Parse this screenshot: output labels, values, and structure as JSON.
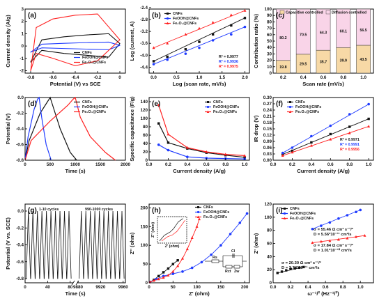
{
  "colors": {
    "black": "#111111",
    "blue": "#1f3bff",
    "red": "#ff2020",
    "cap": "#f7d9a6",
    "dif": "#f9d4e8",
    "axis": "#000000"
  },
  "legend_labels": {
    "cnfs": "CNFs",
    "feooh": "FeOOH@CNFs",
    "fe2o3": "Fe₂O₃@CNFs"
  },
  "chart_data": [
    {
      "panel": "(a)",
      "type": "line",
      "xlabel": "Potential (V) vs SCE",
      "ylabel": "Current density (A/g)",
      "xlim": [
        -0.85,
        0.05
      ],
      "ylim": [
        -2.2,
        3.0
      ],
      "xticks": [
        "-0.8",
        "-0.6",
        "-0.4",
        "-0.2",
        "0"
      ],
      "yticks": [
        "-2",
        "-1",
        "0",
        "1",
        "2",
        "3"
      ],
      "series": [
        {
          "name": "CNFs",
          "color": "#111111",
          "x": [
            -0.8,
            -0.7,
            -0.5,
            -0.3,
            -0.1,
            0,
            -0.1,
            -0.3,
            -0.5,
            -0.7,
            -0.8
          ],
          "y": [
            -1.3,
            0.5,
            0.75,
            0.9,
            1.0,
            0.2,
            -0.9,
            -0.75,
            -0.6,
            -0.35,
            -1.3
          ]
        },
        {
          "name": "FeOOH@CNFs",
          "color": "#1f3bff",
          "x": [
            -0.8,
            -0.7,
            -0.5,
            -0.3,
            -0.1,
            0,
            -0.1,
            -0.3,
            -0.5,
            -0.7,
            -0.8
          ],
          "y": [
            -0.5,
            0.15,
            0.22,
            0.28,
            0.32,
            0.05,
            -0.3,
            -0.25,
            -0.2,
            -0.15,
            -0.5
          ]
        },
        {
          "name": "Fe₂O₃@CNFs",
          "color": "#ff2020",
          "x": [
            -0.8,
            -0.75,
            -0.6,
            -0.4,
            -0.2,
            0,
            -0.2,
            -0.4,
            -0.6,
            -0.75,
            -0.8
          ],
          "y": [
            -2.0,
            1.5,
            2.2,
            2.5,
            2.6,
            0.5,
            -1.2,
            -1.6,
            -1.0,
            -0.6,
            -2.0
          ]
        }
      ]
    },
    {
      "panel": "(b)",
      "type": "scatter",
      "xlabel": "Log (scan rate, mV/s)",
      "ylabel": "Log (current, A)",
      "xlim": [
        -0.1,
        2.1
      ],
      "ylim": [
        -4.6,
        -2.45
      ],
      "xticks": [
        "0.0",
        "0.5",
        "1.0",
        "1.5",
        "2.0"
      ],
      "yticks": [
        "-4.4",
        "-4.0",
        "-3.6",
        "-3.2",
        "-2.8",
        "-2.4"
      ],
      "r2_labels": [
        "R² = 0.9977",
        "R² = 0.9936",
        "R² = 0.9975"
      ],
      "series": [
        {
          "name": "CNFs",
          "color": "#111111",
          "x": [
            0,
            0.3,
            0.7,
            1.0,
            1.3,
            1.7,
            2.0
          ],
          "y": [
            -4.2,
            -4.05,
            -3.8,
            -3.55,
            -3.3,
            -3.0,
            -2.75
          ]
        },
        {
          "name": "FeOOH@CNFs",
          "color": "#1f3bff",
          "x": [
            0,
            0.3,
            0.7,
            1.0,
            1.3,
            1.7,
            2.0
          ],
          "y": [
            -4.3,
            -4.15,
            -3.95,
            -3.75,
            -3.5,
            -3.3,
            -3.05
          ]
        },
        {
          "name": "Fe₂O₃@CNFs",
          "color": "#ff2020",
          "x": [
            0,
            0.3,
            0.7,
            1.0,
            1.3,
            1.7,
            2.0
          ],
          "y": [
            -3.75,
            -3.6,
            -3.3,
            -3.1,
            -2.9,
            -2.65,
            -2.5
          ]
        }
      ]
    },
    {
      "panel": "(c)",
      "type": "bar",
      "xlabel": "Scan rate (mV/s)",
      "ylabel": "Contribution ratio (%)",
      "categories": [
        "0.2",
        "0.4",
        "0.6",
        "0.8",
        "1.0"
      ],
      "ylim": [
        0,
        100
      ],
      "yticks": [
        "0",
        "10",
        "20",
        "30",
        "40",
        "50",
        "60",
        "70",
        "80",
        "90",
        "100"
      ],
      "series": [
        {
          "name": "Capacitive controlled",
          "values": [
            19.8,
            29.5,
            35.7,
            39.9,
            43.5
          ]
        },
        {
          "name": "Diffusion controlled",
          "values": [
            80.2,
            70.5,
            64.3,
            60.1,
            56.5
          ]
        }
      ]
    },
    {
      "panel": "(d)",
      "type": "line",
      "xlabel": "Time (s)",
      "ylabel": "Potential (V)",
      "xlim": [
        0,
        2000
      ],
      "ylim": [
        -0.8,
        0
      ],
      "xticks": [
        "0",
        "500",
        "1000",
        "1500",
        "2000"
      ],
      "yticks": [
        "-0.8",
        "-0.6",
        "-0.4",
        "-0.2",
        "0.0"
      ],
      "series": [
        {
          "name": "CNFs",
          "color": "#111111",
          "x": [
            0,
            80,
            300,
            450,
            500,
            550,
            700,
            900,
            1030
          ],
          "y": [
            -0.8,
            -0.55,
            -0.2,
            -0.05,
            0,
            -0.1,
            -0.4,
            -0.7,
            -0.8
          ]
        },
        {
          "name": "FeOOH@CNFs",
          "color": "#1f3bff",
          "x": [
            0,
            60,
            180,
            250,
            280,
            330,
            420,
            520
          ],
          "y": [
            -0.8,
            -0.5,
            -0.15,
            -0.02,
            0,
            -0.25,
            -0.6,
            -0.8
          ]
        },
        {
          "name": "Fe₂O₃@CNFs",
          "color": "#ff2020",
          "x": [
            0,
            120,
            500,
            850,
            960,
            1000,
            1100,
            1300,
            1600,
            1800
          ],
          "y": [
            -0.8,
            -0.55,
            -0.3,
            -0.1,
            -0.02,
            0,
            -0.25,
            -0.5,
            -0.7,
            -0.8
          ]
        }
      ]
    },
    {
      "panel": "(e)",
      "type": "line",
      "xlabel": "Current density (A/g)",
      "ylabel": "Specific capacitance (F/g)",
      "xlim": [
        0,
        1.05
      ],
      "ylim": [
        0,
        150
      ],
      "xticks": [
        "0.0",
        "0.2",
        "0.4",
        "0.6",
        "0.8",
        "1.0"
      ],
      "yticks": [
        "0",
        "20",
        "40",
        "60",
        "80",
        "100",
        "120",
        "140"
      ],
      "series": [
        {
          "name": "CNFs",
          "color": "#111111",
          "x": [
            0.1,
            0.2,
            0.4,
            0.6,
            0.8,
            1.0
          ],
          "y": [
            88,
            42,
            28,
            18,
            12,
            7
          ]
        },
        {
          "name": "FeOOH@CNFs",
          "color": "#1f3bff",
          "x": [
            0.1,
            0.2,
            0.4,
            0.6,
            0.8,
            1.0
          ],
          "y": [
            37,
            24,
            8,
            5,
            4,
            3
          ]
        },
        {
          "name": "Fe₂O₃@CNFs",
          "color": "#ff2020",
          "x": [
            0.1,
            0.2,
            0.4,
            0.6,
            0.8,
            1.0
          ],
          "y": [
            132,
            62,
            30,
            20,
            14,
            11
          ]
        }
      ]
    },
    {
      "panel": "(f)",
      "type": "scatter",
      "xlabel": "Current density (A/g)",
      "ylabel": "IR drop (V)",
      "xlim": [
        0,
        1.05
      ],
      "ylim": [
        0,
        0.3
      ],
      "xticks": [
        "0.0",
        "0.2",
        "0.4",
        "0.6",
        "0.8",
        "1.0"
      ],
      "yticks": [
        "0.00",
        "0.03",
        "0.06",
        "0.09",
        "0.12",
        "0.15",
        "0.18",
        "0.21",
        "0.24",
        "0.27",
        "0.30"
      ],
      "r2_labels": [
        "R² = 0.9971",
        "R² = 0.9991",
        "R² = 0.9956"
      ],
      "series": [
        {
          "name": "CNFs",
          "color": "#111111",
          "x": [
            0.1,
            0.2,
            0.4,
            0.6,
            0.8,
            1.0
          ],
          "y": [
            0.028,
            0.045,
            0.085,
            0.125,
            0.16,
            0.198
          ]
        },
        {
          "name": "FeOOH@CNFs",
          "color": "#1f3bff",
          "x": [
            0.1,
            0.2,
            0.4,
            0.6,
            0.8,
            1.0
          ],
          "y": [
            0.035,
            0.06,
            0.115,
            0.165,
            0.22,
            0.268
          ]
        },
        {
          "name": "Fe₂O₃@CNFs",
          "color": "#ff2020",
          "x": [
            0.1,
            0.2,
            0.4,
            0.6,
            0.8,
            1.0
          ],
          "y": [
            0.022,
            0.038,
            0.07,
            0.1,
            0.13,
            0.162
          ]
        }
      ]
    },
    {
      "panel": "(g)",
      "type": "line",
      "xlabel": "Time (s)",
      "ylabel": "Potential (V vs. SCE)",
      "yticks": [
        "-0.8",
        "-0.6",
        "-0.4",
        "-0.2",
        "0.0"
      ],
      "ylim": [
        -0.8,
        0
      ],
      "xticks": [
        "0",
        "40",
        "80",
        "9880",
        "9920",
        "9960"
      ],
      "segment_labels": [
        "1-10 cycles",
        "990-1000 cycles"
      ],
      "cycles_per_segment": 10,
      "cycle_period_s": 8
    },
    {
      "panel": "(h)",
      "type": "scatter",
      "xlabel": "Z' (ohm)",
      "ylabel": "Z'' (ohm)",
      "xlim": [
        0,
        210
      ],
      "ylim": [
        0,
        210
      ],
      "xticks": [
        "0",
        "50",
        "100",
        "150",
        "200"
      ],
      "yticks": [
        "0",
        "50",
        "100",
        "150",
        "200"
      ],
      "inset": {
        "xlabel": "Z' (ohm)",
        "ylabel": "Z'' (ohm)",
        "xticks": [
          "0",
          "5",
          "10",
          "15",
          "20"
        ],
        "yticks": [
          "0",
          "3",
          "6",
          "9",
          "12"
        ]
      },
      "circuit_labels": [
        "Rs",
        "Cl",
        "Rct",
        "Zw"
      ],
      "series": [
        {
          "name": "CNFs",
          "color": "#111111",
          "x": [
            2,
            10,
            20,
            30,
            40,
            50,
            60
          ],
          "y": [
            2,
            8,
            18,
            28,
            38,
            50,
            60
          ]
        },
        {
          "name": "FeOOH@CNFs",
          "color": "#1f3bff",
          "x": [
            2,
            15,
            30,
            50,
            70,
            90,
            110,
            130,
            150,
            170,
            190,
            205
          ],
          "y": [
            2,
            10,
            18,
            24,
            30,
            40,
            55,
            75,
            100,
            130,
            160,
            185
          ]
        },
        {
          "name": "Fe₂O₃@CNFs",
          "color": "#ff2020",
          "x": [
            2,
            10,
            20,
            30,
            40,
            50,
            60,
            70,
            80,
            90,
            100,
            105
          ],
          "y": [
            2,
            6,
            10,
            14,
            20,
            30,
            45,
            65,
            90,
            120,
            150,
            170
          ]
        }
      ]
    },
    {
      "panel": "(i)",
      "type": "scatter",
      "xlabel": "ω⁻¹/² (Hz⁻¹/²)",
      "ylabel": "Z' (ohm)",
      "xlim": [
        0,
        1.15
      ],
      "ylim": [
        0,
        120
      ],
      "xticks": [
        "0.0",
        "0.2",
        "0.4",
        "0.6",
        "0.8",
        "1.0"
      ],
      "yticks": [
        "0",
        "20",
        "40",
        "60",
        "80",
        "100",
        "120"
      ],
      "annotations": {
        "a1": "σ = 55.46 Ω cm² s⁻¹/²",
        "d1": "D = 5.56*10⁻¹¹ cm²/s",
        "a2": "σ = 17.84 Ω cm² s⁻¹/²",
        "d2": "D = 1.01*10⁻¹⁰ cm²/s",
        "a3": "σ = 20.30 Ω cm² s⁻¹/²",
        "d3": "D = 3.74*10⁻¹¹ cm²/s"
      },
      "series": [
        {
          "name": "CNFs",
          "color": "#111111",
          "x": [
            0.05,
            0.1,
            0.15,
            0.2,
            0.25,
            0.3,
            0.35
          ],
          "y": [
            15,
            17,
            19,
            21,
            22,
            23,
            24
          ]
        },
        {
          "name": "FeOOH@CNFs",
          "color": "#1f3bff",
          "x": [
            0.45,
            0.55,
            0.65,
            0.75,
            0.85,
            0.95,
            1.0
          ],
          "y": [
            82,
            87,
            92,
            98,
            103,
            108,
            111
          ]
        },
        {
          "name": "Fe₂O₃@CNFs",
          "color": "#ff2020",
          "x": [
            0.45,
            0.55,
            0.65,
            0.75,
            0.85,
            0.95,
            1.05
          ],
          "y": [
            61,
            63,
            64,
            66,
            68,
            70,
            72
          ]
        }
      ]
    }
  ]
}
